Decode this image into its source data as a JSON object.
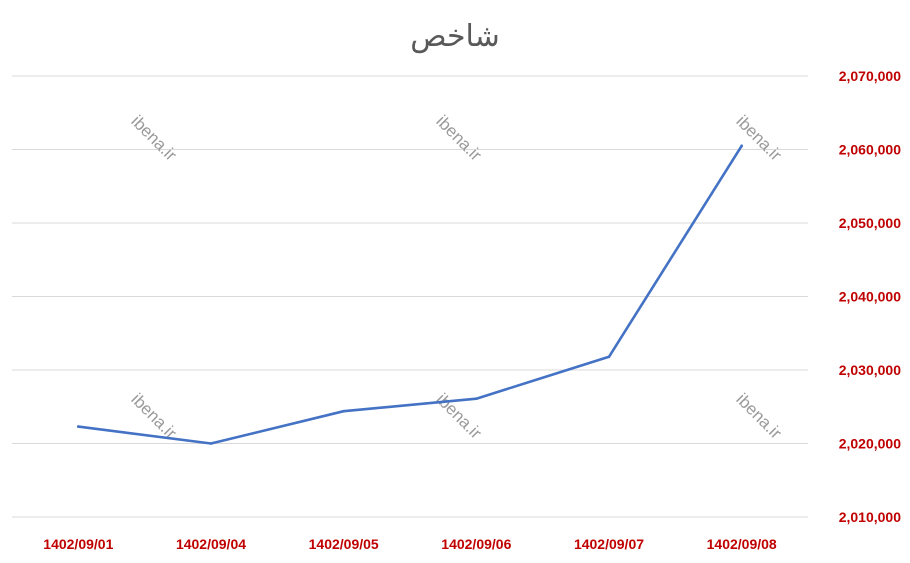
{
  "colors": {
    "line": "#4472C4",
    "tick_label": "#C00000",
    "grid": "#D9D9D9",
    "title": "#595959",
    "watermark": "#9A9A9A"
  },
  "watermark_text": "ibena.ir",
  "chart_data": {
    "type": "line",
    "title": "شاخص",
    "xlabel": "",
    "ylabel": "",
    "categories": [
      "1402/09/01",
      "1402/09/04",
      "1402/09/05",
      "1402/09/06",
      "1402/09/07",
      "1402/09/08"
    ],
    "series": [
      {
        "values": [
          2022300,
          2020000,
          2024400,
          2026100,
          2031800,
          2060500
        ]
      }
    ],
    "ylim": [
      2010000,
      2070000
    ],
    "yticks": [
      2010000,
      2020000,
      2030000,
      2040000,
      2050000,
      2060000,
      2070000
    ],
    "ytick_labels": [
      "2,010,000",
      "2,020,000",
      "2,030,000",
      "2,040,000",
      "2,050,000",
      "2,060,000",
      "2,070,000"
    ],
    "y_axis_side": "right",
    "grid": true,
    "legend": "none"
  }
}
